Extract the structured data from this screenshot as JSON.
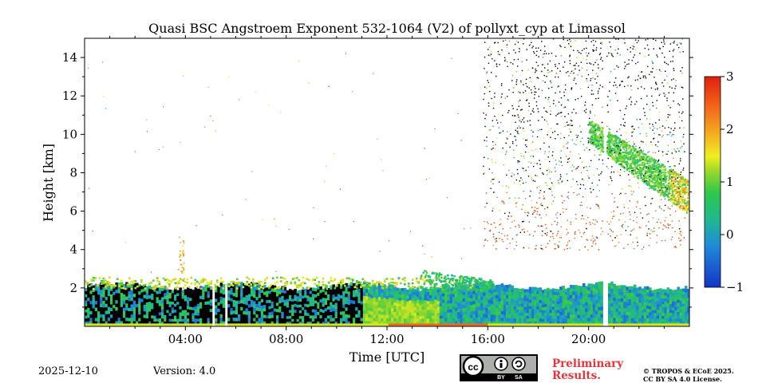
{
  "chart_data": {
    "type": "heatmap",
    "title": "Quasi BSC Angstroem Exponent 532-1064 (V2) of pollyxt_cyp at Limassol",
    "xlabel": "Time [UTC]",
    "ylabel": "Height [km]",
    "xlim": [
      0,
      24
    ],
    "ylim": [
      0,
      15
    ],
    "x_ticks": [
      {
        "value": 4,
        "label": "04:00"
      },
      {
        "value": 8,
        "label": "08:00"
      },
      {
        "value": 12,
        "label": "12:00"
      },
      {
        "value": 16,
        "label": "16:00"
      },
      {
        "value": 20,
        "label": "20:00"
      }
    ],
    "y_ticks": [
      {
        "value": 2,
        "label": "2"
      },
      {
        "value": 4,
        "label": "4"
      },
      {
        "value": 6,
        "label": "6"
      },
      {
        "value": 8,
        "label": "8"
      },
      {
        "value": 10,
        "label": "10"
      },
      {
        "value": 12,
        "label": "12"
      },
      {
        "value": 14,
        "label": "14"
      }
    ],
    "colorbar": {
      "range": [
        -1,
        3
      ],
      "ticks": [
        {
          "value": 3,
          "label": "3"
        },
        {
          "value": 2,
          "label": "2"
        },
        {
          "value": 1,
          "label": "1"
        },
        {
          "value": 0,
          "label": "0"
        },
        {
          "value": -1,
          "label": "−1"
        }
      ]
    },
    "regions": [
      {
        "name": "boundary-layer",
        "x": [
          0,
          24
        ],
        "y": [
          0.1,
          2.1
        ],
        "value_range": [
          -0.5,
          0.9
        ]
      },
      {
        "name": "boundary-layer-top",
        "x": [
          0,
          15.5
        ],
        "y": [
          2.0,
          2.6
        ],
        "value_range": [
          0.8,
          1.8
        ]
      },
      {
        "name": "aerosol-plume-1330",
        "x": [
          13.3,
          16.2
        ],
        "y": [
          1.9,
          3.0
        ],
        "value_range": [
          0.2,
          1.0
        ]
      },
      {
        "name": "cirrus-layer",
        "x": [
          20.0,
          24.0
        ],
        "y": [
          5.8,
          10.8
        ],
        "value_range": [
          0.4,
          2.4
        ]
      },
      {
        "name": "upper-noise",
        "x": [
          15.8,
          23.8
        ],
        "y": [
          4.0,
          15.0
        ],
        "value_range": [
          -1,
          3
        ]
      }
    ],
    "gaps": [
      {
        "x": [
          5.0,
          5.1
        ]
      },
      {
        "x": [
          5.5,
          5.6
        ]
      },
      {
        "x": [
          20.55,
          20.7
        ]
      }
    ]
  },
  "footer": {
    "date": "2025-12-10",
    "version": "Version: 4.0",
    "license_badge": "cc by-sa",
    "preliminary": "Preliminary",
    "results": "Results.",
    "copyright_line1": "© TROPOS & ECoE 2025.",
    "copyright_line2": "CC BY SA 4.0 License.",
    "cc": "cc",
    "by": "BY",
    "sa": "SA"
  }
}
